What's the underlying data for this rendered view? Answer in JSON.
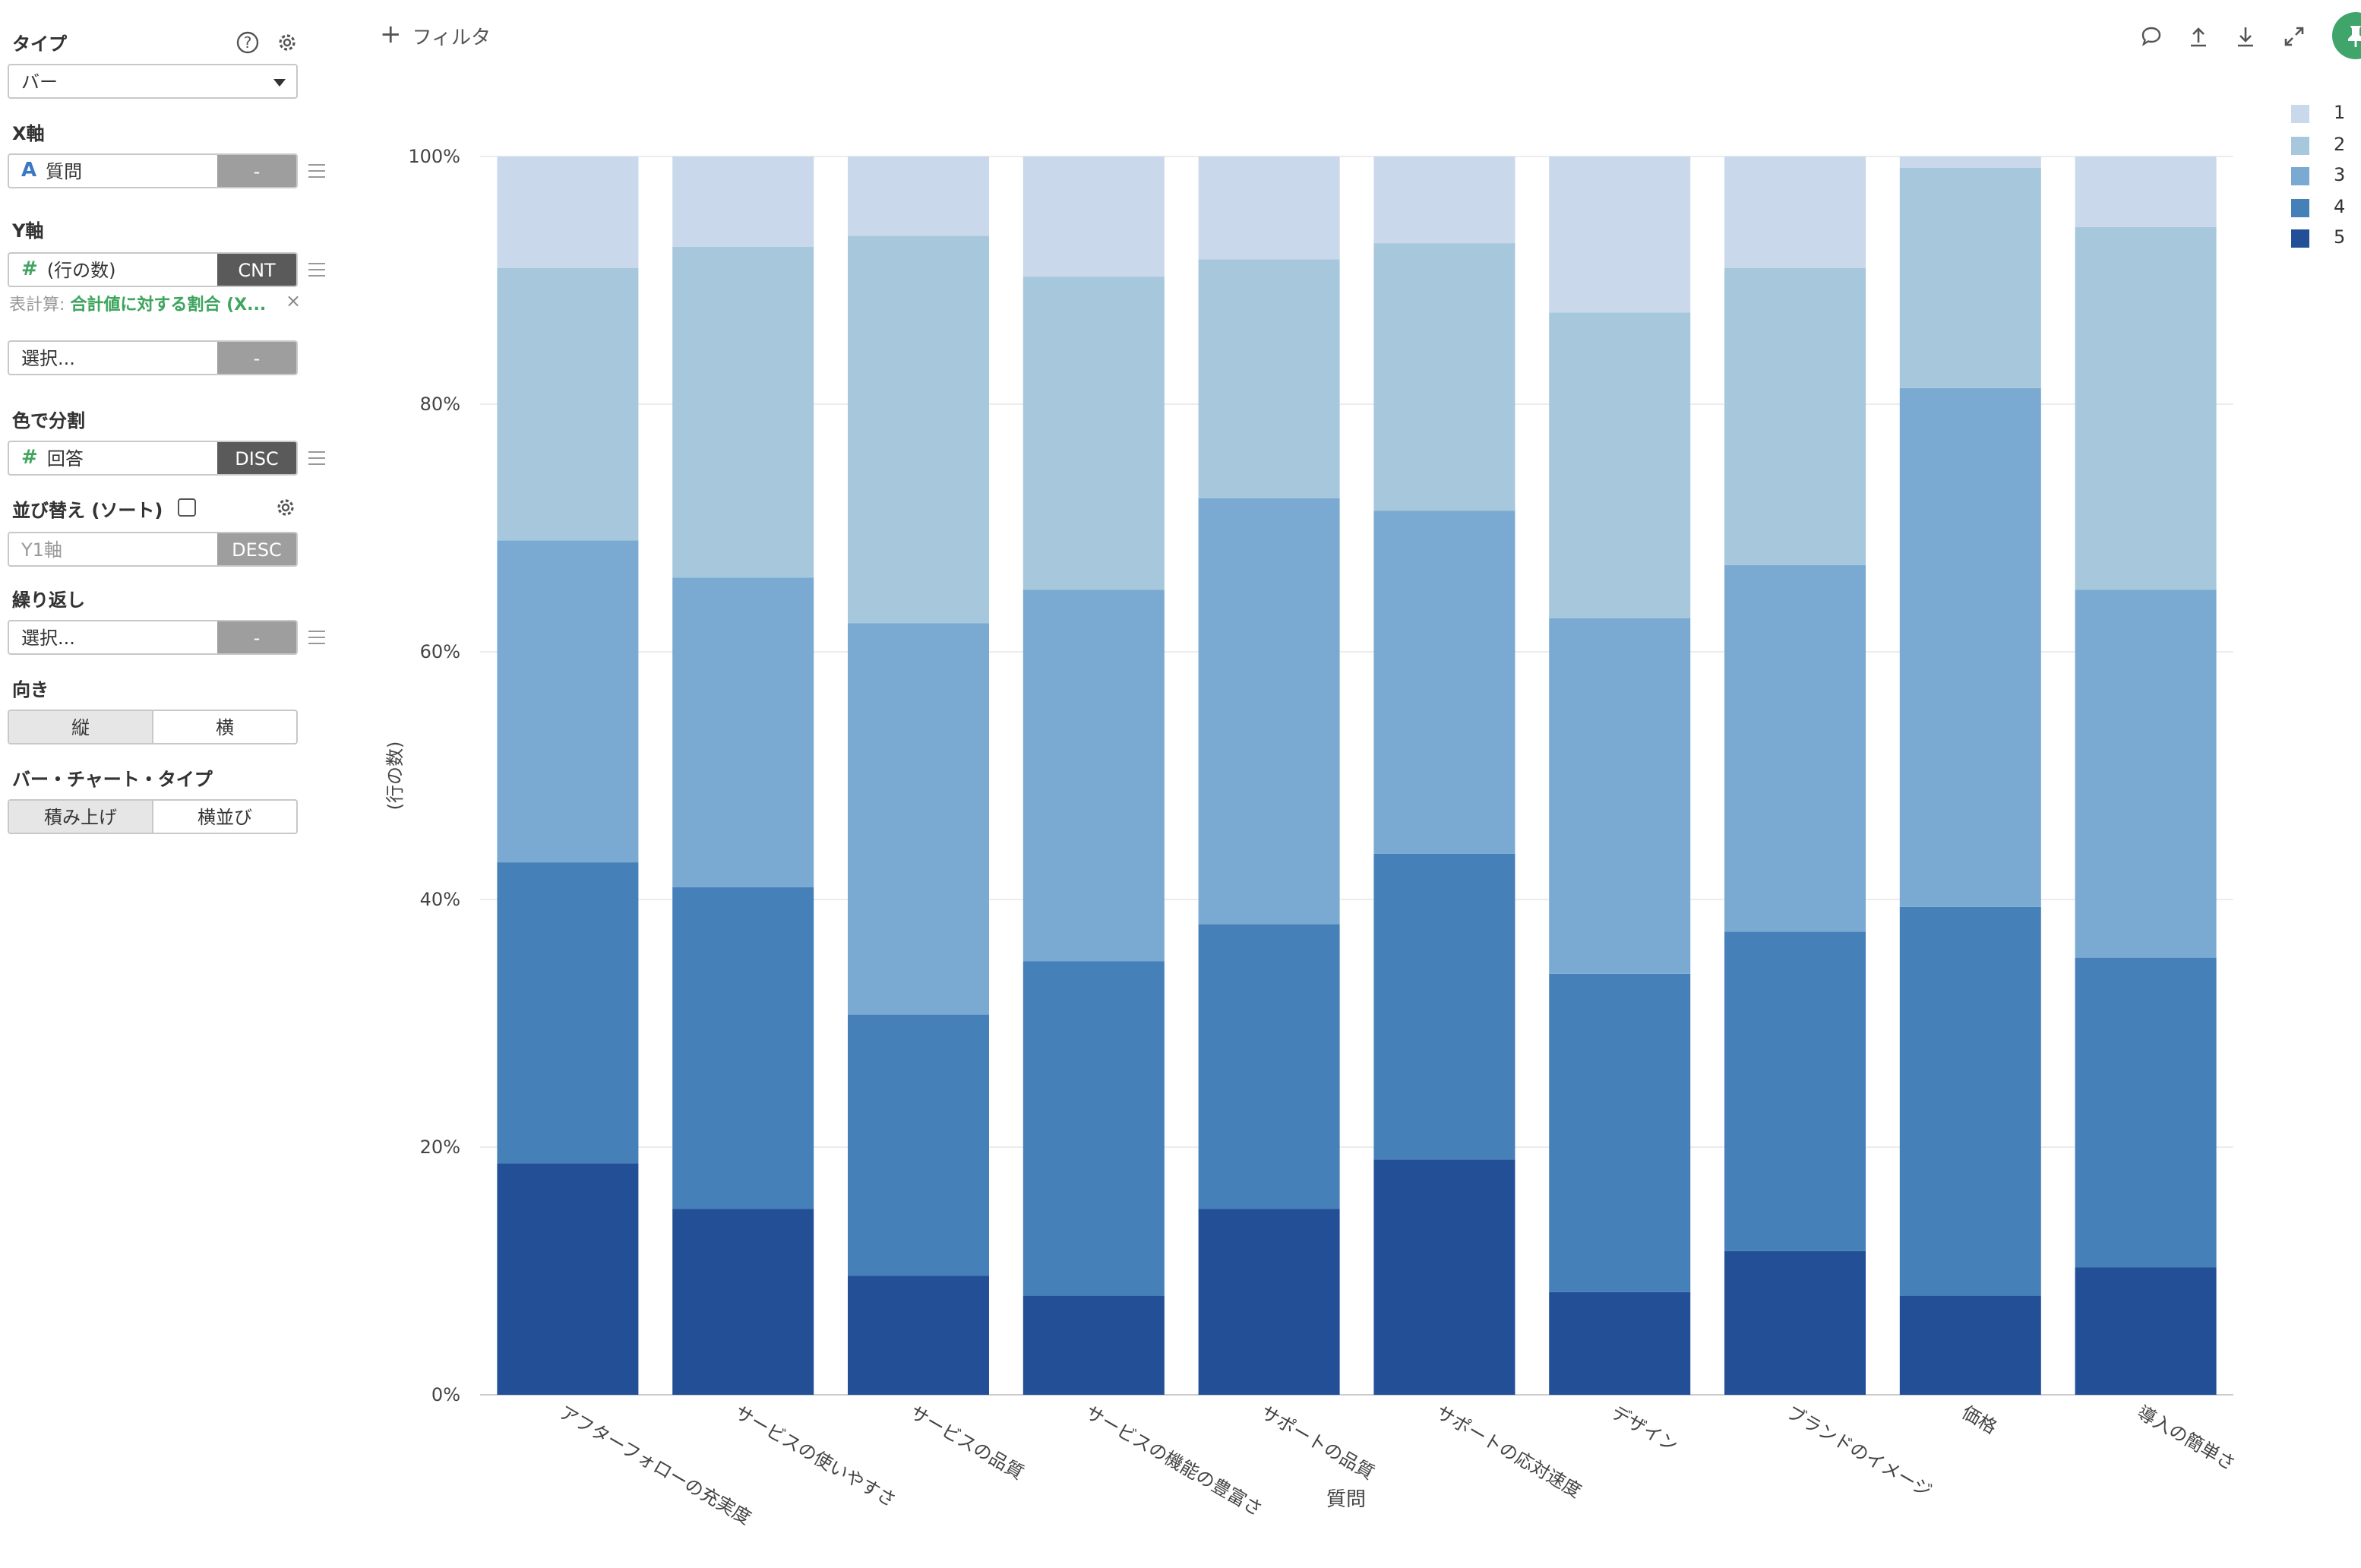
{
  "panel": {
    "type_label": "タイプ",
    "type_value": "バー",
    "x_label": "X軸",
    "x_field": {
      "type_icon": "A",
      "value": "質問",
      "tag": "-"
    },
    "y_label": "Y軸",
    "y_field": {
      "type_icon": "#",
      "value": "(行の数)",
      "tag": "CNT"
    },
    "calc_prefix": "表計算:",
    "calc_value": "合計値に対する割合 (X...",
    "calc_close": "×",
    "y2_field": {
      "value": "選択...",
      "tag": "-"
    },
    "color_label": "色で分割",
    "color_field": {
      "type_icon": "#",
      "value": "回答",
      "tag": "DISC"
    },
    "sort_label": "並び替え (ソート)",
    "sort_field": {
      "placeholder": "Y1軸",
      "tag": "DESC"
    },
    "repeat_label": "繰り返し",
    "repeat_field": {
      "value": "選択...",
      "tag": "-"
    },
    "direction_label": "向き",
    "direction_options": [
      "縦",
      "横"
    ],
    "bartype_label": "バー・チャート・タイプ",
    "bartype_options": [
      "積み上げ",
      "横並び"
    ]
  },
  "toolbar": {
    "filter_plus": "+",
    "filter_label": "フィルタ",
    "icons": [
      "comment-icon",
      "upload-icon",
      "download-icon",
      "expand-icon",
      "pin-icon"
    ]
  },
  "colors": {
    "accent_green": "#3fa56b",
    "series": {
      "1": "#c9d8ea",
      "2": "#a7c7dc",
      "3": "#7aaad1",
      "4": "#4680b9",
      "5": "#234f96"
    }
  },
  "chart_data": {
    "type": "bar",
    "stacked": true,
    "normalized": true,
    "xlabel": "質問",
    "ylabel": "(行の数)",
    "ylim": [
      0,
      100
    ],
    "y_ticks": [
      "0%",
      "20%",
      "40%",
      "60%",
      "80%",
      "100%"
    ],
    "grid": true,
    "legend_position": "top-right",
    "categories": [
      "アフターフォローの充実度",
      "サービスの使いやすさ",
      "サービスの品質",
      "サービスの機能の豊富さ",
      "サポートの品質",
      "サポートの応対速度",
      "デザイン",
      "ブランドのイメージ",
      "価格",
      "導入の簡単さ"
    ],
    "series": [
      {
        "name": "5",
        "values": [
          18.7,
          15.0,
          9.6,
          8.0,
          15.0,
          19.0,
          8.3,
          11.6,
          8.0,
          10.3
        ]
      },
      {
        "name": "4",
        "values": [
          24.3,
          26.0,
          21.1,
          27.0,
          23.0,
          24.7,
          25.7,
          25.8,
          31.4,
          25.0
        ]
      },
      {
        "name": "3",
        "values": [
          26.0,
          25.0,
          31.6,
          30.0,
          34.4,
          27.7,
          28.7,
          29.6,
          41.9,
          29.7
        ]
      },
      {
        "name": "2",
        "values": [
          22.0,
          26.7,
          31.3,
          25.3,
          19.3,
          21.6,
          24.7,
          24.0,
          17.8,
          29.3
        ]
      },
      {
        "name": "1",
        "values": [
          9.0,
          7.3,
          6.4,
          9.7,
          8.3,
          7.0,
          12.6,
          9.0,
          0.9,
          5.7
        ]
      }
    ]
  }
}
